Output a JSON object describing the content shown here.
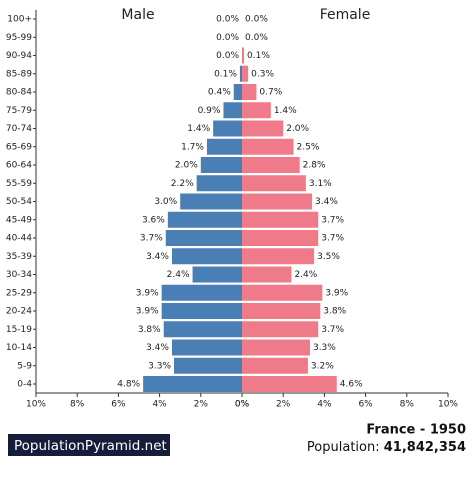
{
  "chart_data": {
    "type": "pyramid",
    "categories": [
      "0-4",
      "5-9",
      "10-14",
      "15-19",
      "20-24",
      "25-29",
      "30-34",
      "35-39",
      "40-44",
      "45-49",
      "50-54",
      "55-59",
      "60-64",
      "65-69",
      "70-74",
      "75-79",
      "80-84",
      "85-89",
      "90-94",
      "95-99",
      "100+"
    ],
    "series": [
      {
        "name": "Male",
        "color": "#4a7fb5",
        "side": "left",
        "values": [
          4.8,
          3.3,
          3.4,
          3.8,
          3.9,
          3.9,
          2.4,
          3.4,
          3.7,
          3.6,
          3.0,
          2.2,
          2.0,
          1.7,
          1.4,
          0.9,
          0.4,
          0.1,
          0.0,
          0.0,
          0.0
        ],
        "value_labels": [
          "4.8%",
          "3.3%",
          "3.4%",
          "3.8%",
          "3.9%",
          "3.9%",
          "2.4%",
          "3.4%",
          "3.7%",
          "3.6%",
          "3.0%",
          "2.2%",
          "2.0%",
          "1.7%",
          "1.4%",
          "0.9%",
          "0.4%",
          "0.1%",
          "0.0%",
          "0.0%",
          "0.0%"
        ],
        "xlim": [
          0,
          10
        ],
        "xticks": [
          {
            "value": 10,
            "label": "10%"
          },
          {
            "value": 8,
            "label": "8%"
          },
          {
            "value": 6,
            "label": "6%"
          },
          {
            "value": 4,
            "label": "4%"
          },
          {
            "value": 2,
            "label": "2%"
          },
          {
            "value": 0,
            "label": "0%"
          }
        ]
      },
      {
        "name": "Female",
        "color": "#ef7b8a",
        "side": "right",
        "values": [
          4.6,
          3.2,
          3.3,
          3.7,
          3.8,
          3.9,
          2.4,
          3.5,
          3.7,
          3.7,
          3.4,
          3.1,
          2.8,
          2.5,
          2.0,
          1.4,
          0.7,
          0.3,
          0.1,
          0.0,
          0.0
        ],
        "value_labels": [
          "4.6%",
          "3.2%",
          "3.3%",
          "3.7%",
          "3.8%",
          "3.9%",
          "2.4%",
          "3.5%",
          "3.7%",
          "3.7%",
          "3.4%",
          "3.1%",
          "2.8%",
          "2.5%",
          "2.0%",
          "1.4%",
          "0.7%",
          "0.3%",
          "0.1%",
          "0.0%",
          "0.0%"
        ],
        "xlim": [
          0,
          10
        ],
        "xticks": [
          {
            "value": 0,
            "label": "0%"
          },
          {
            "value": 2,
            "label": "2%"
          },
          {
            "value": 4,
            "label": "4%"
          },
          {
            "value": 6,
            "label": "6%"
          },
          {
            "value": 8,
            "label": "8%"
          },
          {
            "value": 10,
            "label": "10%"
          }
        ]
      }
    ]
  },
  "footer": {
    "brand": "PopulationPyramid.net",
    "title": "France - 1950",
    "population_label": "Population:",
    "population": "41,842,354"
  }
}
